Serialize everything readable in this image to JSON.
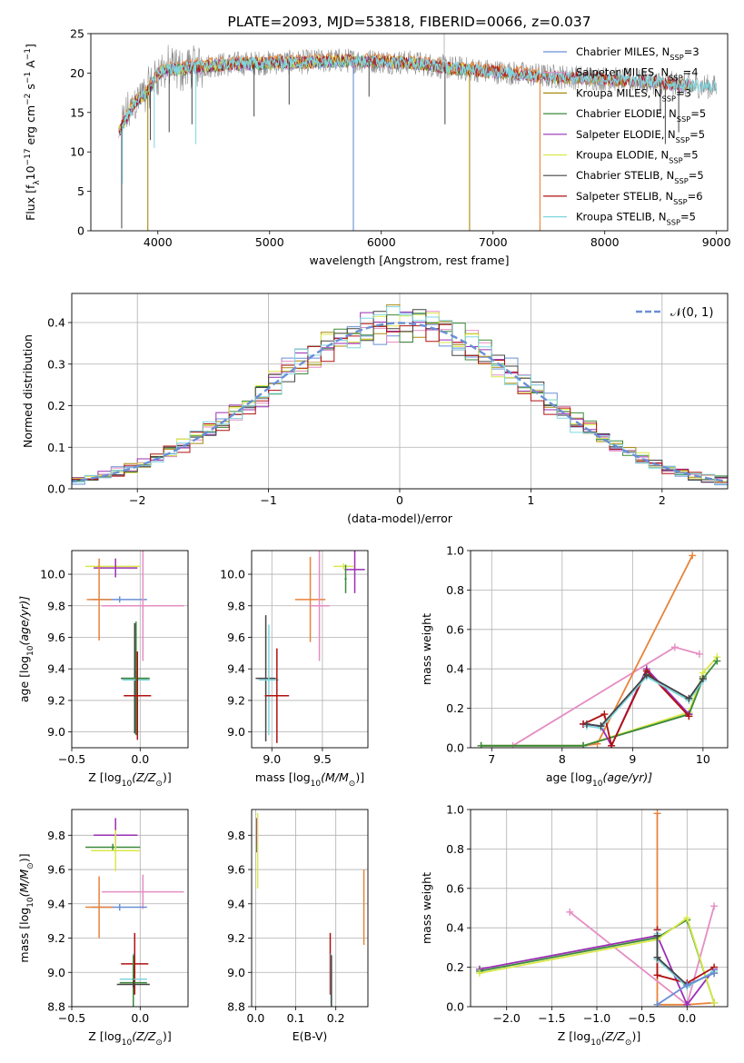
{
  "colors": {
    "Chabrier MILES": "#6a8fd6",
    "Salpeter MILES": "#e58dc3",
    "Kroupa MILES": "#a8890e",
    "Chabrier ELODIE": "#3a8a3a",
    "Salpeter ELODIE": "#9a2fb4",
    "Kroupa ELODIE": "#d9e94a",
    "Chabrier STELIB": "#444444",
    "Salpeter STELIB": "#b01010",
    "Kroupa STELIB": "#7fd6e0",
    "orange": "#e8833a",
    "gaussian": "#6a8fd6"
  },
  "chart_data": [
    {
      "id": "spectrum",
      "type": "line",
      "title": "PLATE=2093, MJD=53818, FIBERID=0066, z=0.037",
      "xlabel": "wavelength [Angstrom, rest frame]",
      "ylabel_parts": [
        "Flux [f",
        "λ",
        "10",
        "−17",
        " erg cm",
        "−2",
        " s",
        "−1",
        " A",
        "−1",
        "]"
      ],
      "xlim": [
        3400,
        9100
      ],
      "ylim": [
        0,
        25
      ],
      "xticks": [
        4000,
        5000,
        6000,
        7000,
        8000,
        9000
      ],
      "yticks": [
        0,
        5,
        10,
        15,
        20,
        25
      ],
      "grid": false,
      "legend_position": "upper right",
      "legend": [
        {
          "base": "Chabrier MILES, N",
          "sub": "SSP",
          "tail": "=3"
        },
        {
          "base": "Salpeter MILES, N",
          "sub": "SSP",
          "tail": "=4"
        },
        {
          "base": "Kroupa MILES, N",
          "sub": "SSP",
          "tail": "=3"
        },
        {
          "base": "Chabrier ELODIE, N",
          "sub": "SSP",
          "tail": "=5"
        },
        {
          "base": "Salpeter ELODIE, N",
          "sub": "SSP",
          "tail": "=5"
        },
        {
          "base": "Kroupa ELODIE, N",
          "sub": "SSP",
          "tail": "=5"
        },
        {
          "base": "Chabrier STELIB, N",
          "sub": "SSP",
          "tail": "=5"
        },
        {
          "base": "Salpeter STELIB, N",
          "sub": "SSP",
          "tail": "=6"
        },
        {
          "base": "Kroupa STELIB, N",
          "sub": "SSP",
          "tail": "=5"
        }
      ],
      "continuum": {
        "x": [
          3650,
          3700,
          3800,
          3900,
          4000,
          4100,
          4200,
          4300,
          4500,
          4700,
          5000,
          5300,
          5600,
          6000,
          6300,
          6600,
          7000,
          7500,
          8000,
          8500,
          9000
        ],
        "y": [
          12.5,
          14.0,
          16.5,
          17.5,
          20.0,
          20.5,
          20.5,
          20.8,
          21.0,
          21.2,
          21.3,
          21.4,
          21.6,
          21.5,
          21.3,
          20.7,
          20.2,
          19.6,
          19.3,
          18.8,
          18.2
        ]
      },
      "spikes": [
        {
          "x": 3676,
          "y": 0.3,
          "color": "#444444"
        },
        {
          "x": 3683,
          "y": 6.0,
          "color": "#7fd6e0"
        },
        {
          "x": 3933,
          "y": 11.5,
          "color": "#444444"
        },
        {
          "x": 3968,
          "y": 10.5,
          "color": "#7fd6e0"
        },
        {
          "x": 4101,
          "y": 12.5,
          "color": "#444444"
        },
        {
          "x": 4305,
          "y": 13.5,
          "color": "#444444"
        },
        {
          "x": 4340,
          "y": 11.0,
          "color": "#7fd6e0"
        },
        {
          "x": 4861,
          "y": 14.5,
          "color": "#444444"
        },
        {
          "x": 5175,
          "y": 16.0,
          "color": "#444444"
        },
        {
          "x": 5890,
          "y": 17.0,
          "color": "#444444"
        },
        {
          "x": 6563,
          "y": 25.0,
          "color": "#b8b8b8"
        },
        {
          "x": 6570,
          "y": 13.5,
          "color": "#444444"
        },
        {
          "x": 8498,
          "y": 15.0,
          "color": "#444444"
        },
        {
          "x": 8542,
          "y": 11.0,
          "color": "#444444"
        },
        {
          "x": 8662,
          "y": 12.5,
          "color": "#444444"
        }
      ],
      "drops": [
        {
          "x": 3910,
          "y": 0,
          "color": "#a8890e"
        },
        {
          "x": 5750,
          "y": 0,
          "color": "#6a8fd6"
        },
        {
          "x": 6790,
          "y": 0,
          "color": "#a8890e"
        },
        {
          "x": 7420,
          "y": 0,
          "color": "#e8833a"
        }
      ]
    },
    {
      "id": "residuals",
      "type": "bar",
      "xlabel": "(data-model)/error",
      "ylabel": "Normed distribution",
      "xlim": [
        -2.5,
        2.5
      ],
      "ylim": [
        0,
        0.47
      ],
      "xticks": [
        -2,
        -1,
        0,
        1,
        2
      ],
      "xticklabels": [
        "−2",
        "−1",
        "0",
        "1",
        "2"
      ],
      "yticks": [
        0.0,
        0.1,
        0.2,
        0.3,
        0.4
      ],
      "grid": true,
      "legend_position": "upper right",
      "gaussian_label": "𝒩(0, 1)",
      "bin_width": 0.1
    },
    {
      "id": "age_vs_Z",
      "type": "scatter",
      "xlabel_parts": [
        "Z [log",
        "10",
        "(Z/Z",
        "⊙",
        ")]"
      ],
      "ylabel_parts": [
        "age  [log",
        "10",
        "(age/yr)]"
      ],
      "xlim": [
        -0.5,
        0.35
      ],
      "ylim": [
        8.9,
        10.15
      ],
      "xticks": [
        -0.5,
        0.0
      ],
      "xticklabels": [
        "−0.5",
        "0.0"
      ],
      "yticks": [
        9.0,
        9.2,
        9.4,
        9.6,
        9.8,
        10.0
      ],
      "grid": true,
      "points": [
        {
          "x": -0.2,
          "xe": 0.2,
          "y": 10.05,
          "ye": 0.0,
          "color": "#d9e94a"
        },
        {
          "x": -0.18,
          "xe": 0.16,
          "y": 10.04,
          "ye": 0.06,
          "color": "#9a2fb4"
        },
        {
          "x": -0.15,
          "xe": 0.2,
          "y": 9.84,
          "ye": 0.02,
          "color": "#6a8fd6"
        },
        {
          "x": -0.3,
          "xe": 0.09,
          "y": 9.84,
          "ye": 0.26,
          "color": "#e8833a"
        },
        {
          "x": 0.02,
          "xe": 0.3,
          "y": 9.8,
          "ye": 0.35,
          "color": "#e58dc3"
        },
        {
          "x": -0.04,
          "xe": 0.1,
          "y": 9.34,
          "ye": 0.35,
          "color": "#444444"
        },
        {
          "x": -0.03,
          "xe": 0.1,
          "y": 9.33,
          "ye": 0.35,
          "color": "#7fd6e0"
        },
        {
          "x": -0.03,
          "xe": 0.1,
          "y": 9.34,
          "ye": 0.36,
          "color": "#3a8a3a"
        },
        {
          "x": -0.02,
          "xe": 0.1,
          "y": 9.23,
          "ye": 0.28,
          "color": "#b01010"
        }
      ]
    },
    {
      "id": "age_vs_mass",
      "type": "scatter",
      "xlabel_parts": [
        "mass [log",
        "10",
        "(M/M",
        "⊙",
        ")]"
      ],
      "xlim": [
        8.8,
        9.95
      ],
      "ylim": [
        8.9,
        10.15
      ],
      "xticks": [
        9.0,
        9.5
      ],
      "yticks": [
        9.0,
        9.2,
        9.4,
        9.6,
        9.8,
        10.0
      ],
      "grid": true,
      "points": [
        {
          "x": 9.71,
          "xe": 0.1,
          "y": 10.05,
          "ye": 0.02,
          "color": "#d9e94a"
        },
        {
          "x": 9.82,
          "xe": 0.1,
          "y": 10.03,
          "ye": 0.15,
          "color": "#9a2fb4"
        },
        {
          "x": 9.73,
          "xe": 0.01,
          "y": 9.97,
          "ye": 0.09,
          "color": "#3a8a3a"
        },
        {
          "x": 9.38,
          "xe": 0.15,
          "y": 9.84,
          "ye": 0.27,
          "color": "#e8833a"
        },
        {
          "x": 9.47,
          "xe": 0.1,
          "y": 9.8,
          "ye": 0.35,
          "color": "#e58dc3"
        },
        {
          "x": 8.94,
          "xe": 0.1,
          "y": 9.34,
          "ye": 0.4,
          "color": "#444444"
        },
        {
          "x": 8.97,
          "xe": 0.1,
          "y": 9.33,
          "ye": 0.35,
          "color": "#7fd6e0"
        },
        {
          "x": 9.05,
          "xe": 0.12,
          "y": 9.23,
          "ye": 0.3,
          "color": "#b01010"
        }
      ]
    },
    {
      "id": "massweight_vs_age",
      "type": "line",
      "xlabel_parts": [
        "age  [log",
        "10",
        "(age/yr)]"
      ],
      "ylabel": "mass weight",
      "xlim": [
        6.7,
        10.35
      ],
      "ylim": [
        0,
        1.0
      ],
      "xticks": [
        7,
        8,
        9,
        10
      ],
      "yticks": [
        0.0,
        0.2,
        0.4,
        0.6,
        0.8,
        1.0
      ],
      "grid": true,
      "series": [
        {
          "color": "#e58dc3",
          "x": [
            7.3,
            9.6,
            9.95
          ],
          "y": [
            0.01,
            0.51,
            0.475
          ]
        },
        {
          "color": "#e8833a",
          "x": [
            6.85,
            8.3,
            8.5,
            9.85
          ],
          "y": [
            0.01,
            0.01,
            0.02,
            0.975
          ]
        },
        {
          "color": "#a8890e",
          "x": [
            6.85,
            8.3,
            9.8,
            10.0
          ],
          "y": [
            0.01,
            0.01,
            0.17,
            0.36
          ]
        },
        {
          "color": "#6a8fd6",
          "x": [
            6.85,
            8.3,
            9.8,
            10.0
          ],
          "y": [
            0.01,
            0.01,
            0.17,
            0.36
          ]
        },
        {
          "color": "#d9e94a",
          "x": [
            6.85,
            8.3,
            9.8,
            10.0,
            10.2
          ],
          "y": [
            0.01,
            0.01,
            0.18,
            0.38,
            0.46
          ]
        },
        {
          "color": "#3a8a3a",
          "x": [
            6.85,
            8.3,
            9.8,
            10.0,
            10.2
          ],
          "y": [
            0.01,
            0.01,
            0.17,
            0.35,
            0.44
          ]
        },
        {
          "color": "#9a2fb4",
          "x": [
            8.3,
            8.55,
            8.7,
            9.2,
            9.8
          ],
          "y": [
            0.12,
            0.11,
            0.01,
            0.4,
            0.17
          ]
        },
        {
          "color": "#b01010",
          "x": [
            8.3,
            8.6,
            8.7,
            9.2,
            9.8
          ],
          "y": [
            0.12,
            0.17,
            0.01,
            0.39,
            0.16
          ]
        },
        {
          "color": "#7fd6e0",
          "x": [
            8.35,
            8.55,
            9.2,
            9.8,
            10.0
          ],
          "y": [
            0.11,
            0.1,
            0.36,
            0.24,
            0.34
          ]
        },
        {
          "color": "#444444",
          "x": [
            8.35,
            8.55,
            9.2,
            9.8,
            10.0
          ],
          "y": [
            0.12,
            0.11,
            0.37,
            0.25,
            0.35
          ]
        }
      ]
    },
    {
      "id": "mass_vs_Z",
      "type": "scatter",
      "xlabel_parts": [
        "Z [log",
        "10",
        "(Z/Z",
        "⊙",
        ")]"
      ],
      "ylabel_parts": [
        "mass [log",
        "10",
        "(M/M",
        "⊙",
        ")]"
      ],
      "xlim": [
        -0.5,
        0.35
      ],
      "ylim": [
        8.8,
        9.95
      ],
      "xticks": [
        -0.5,
        0.0
      ],
      "xticklabels": [
        "−0.5",
        "0.0"
      ],
      "yticks": [
        8.8,
        9.0,
        9.2,
        9.4,
        9.6,
        9.8
      ],
      "grid": true,
      "points": [
        {
          "x": -0.18,
          "xe": 0.16,
          "y": 9.8,
          "ye": 0.1,
          "color": "#9a2fb4"
        },
        {
          "x": -0.2,
          "xe": 0.2,
          "y": 9.73,
          "ye": 0.02,
          "color": "#3a8a3a"
        },
        {
          "x": -0.18,
          "xe": 0.18,
          "y": 9.71,
          "ye": 0.12,
          "color": "#d9e94a"
        },
        {
          "x": 0.02,
          "xe": 0.3,
          "y": 9.47,
          "ye": 0.1,
          "color": "#e58dc3"
        },
        {
          "x": -0.15,
          "xe": 0.2,
          "y": 9.38,
          "ye": 0.02,
          "color": "#6a8fd6"
        },
        {
          "x": -0.3,
          "xe": 0.1,
          "y": 9.38,
          "ye": 0.18,
          "color": "#e8833a"
        },
        {
          "x": -0.04,
          "xe": 0.1,
          "y": 9.05,
          "ye": 0.18,
          "color": "#b01010"
        },
        {
          "x": -0.05,
          "xe": 0.1,
          "y": 8.96,
          "ye": 0.15,
          "color": "#7fd6e0"
        },
        {
          "x": -0.05,
          "xe": 0.1,
          "y": 8.94,
          "ye": 0.16,
          "color": "#3a8a3a"
        },
        {
          "x": -0.05,
          "xe": 0.12,
          "y": 8.93,
          "ye": 0.02,
          "color": "#444444"
        }
      ]
    },
    {
      "id": "mass_vs_EBV",
      "type": "scatter",
      "xlabel": "E(B-V)",
      "xlim": [
        -0.01,
        0.28
      ],
      "ylim": [
        8.8,
        9.95
      ],
      "xticks": [
        0.0,
        0.1,
        0.2
      ],
      "yticks": [
        8.8,
        9.0,
        9.2,
        9.4,
        9.6,
        9.8
      ],
      "grid": true,
      "points": [
        {
          "x": 0.003,
          "xe": 0.0,
          "y": 9.8,
          "ye": 0.1,
          "color": "#9a2fb4"
        },
        {
          "x": 0.004,
          "xe": 0.0,
          "y": 9.73,
          "ye": 0.02,
          "color": "#3a8a3a"
        },
        {
          "x": 0.005,
          "xe": 0.0,
          "y": 9.71,
          "ye": 0.22,
          "color": "#d9e94a"
        },
        {
          "x": 0.27,
          "xe": 0.0,
          "y": 9.38,
          "ye": 0.22,
          "color": "#e8833a"
        },
        {
          "x": 0.186,
          "xe": 0.0,
          "y": 9.05,
          "ye": 0.18,
          "color": "#b01010"
        },
        {
          "x": 0.188,
          "xe": 0.0,
          "y": 8.96,
          "ye": 0.15,
          "color": "#7fd6e0"
        },
        {
          "x": 0.189,
          "xe": 0.0,
          "y": 8.94,
          "ye": 0.16,
          "color": "#444444"
        }
      ]
    },
    {
      "id": "massweight_vs_Z",
      "type": "line",
      "xlabel_parts": [
        "Z [log",
        "10",
        "(Z/Z",
        "⊙",
        ")]"
      ],
      "ylabel": "mass weight",
      "xlim": [
        -2.4,
        0.45
      ],
      "ylim": [
        0,
        1.0
      ],
      "xticks": [
        -2.0,
        -1.5,
        -1.0,
        -0.5,
        0.0
      ],
      "xticklabels": [
        "−2.0",
        "−1.5",
        "−1.0",
        "−0.5",
        "0.0"
      ],
      "yticks": [
        0.0,
        0.2,
        0.4,
        0.6,
        0.8,
        1.0
      ],
      "grid": true,
      "series": [
        {
          "color": "#e8833a",
          "x": [
            -0.33,
            -0.33,
            0.0,
            0.3
          ],
          "y": [
            0.98,
            0.01,
            0.01,
            0.02
          ]
        },
        {
          "color": "#e58dc3",
          "x": [
            -1.3,
            0.0,
            0.3
          ],
          "y": [
            0.48,
            0.01,
            0.51
          ]
        },
        {
          "color": "#9a2fb4",
          "x": [
            -2.3,
            -0.33,
            0.0,
            0.3
          ],
          "y": [
            0.19,
            0.36,
            0.01,
            0.19
          ]
        },
        {
          "color": "#3a8a3a",
          "x": [
            -2.3,
            -0.33,
            0.0,
            0.3
          ],
          "y": [
            0.18,
            0.35,
            0.44,
            0.02
          ]
        },
        {
          "color": "#d9e94a",
          "x": [
            -2.3,
            -0.33,
            0.0,
            0.3
          ],
          "y": [
            0.17,
            0.34,
            0.45,
            0.02
          ]
        },
        {
          "color": "#b01010",
          "x": [
            -0.33,
            -0.33,
            0.0,
            0.3
          ],
          "y": [
            0.39,
            0.16,
            0.12,
            0.2
          ]
        },
        {
          "color": "#7fd6e0",
          "x": [
            -0.33,
            -0.33,
            0.0,
            0.3
          ],
          "y": [
            0.37,
            0.24,
            0.1,
            0.18
          ]
        },
        {
          "color": "#444444",
          "x": [
            -0.33,
            -0.33,
            0.0,
            0.3
          ],
          "y": [
            0.36,
            0.25,
            0.11,
            0.17
          ]
        },
        {
          "color": "#6a8fd6",
          "x": [
            -0.33,
            0.0,
            0.3
          ],
          "y": [
            0.01,
            0.11,
            0.17
          ]
        }
      ]
    }
  ]
}
